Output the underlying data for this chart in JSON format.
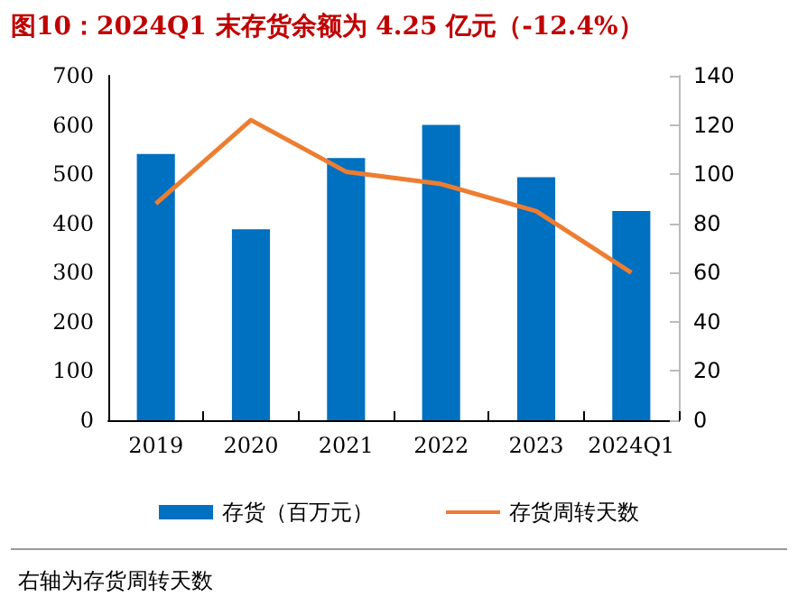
{
  "chart_data": {
    "type": "bar",
    "title": "图10：2024Q1 末存货余额为 4.25 亿元（-12.4%）",
    "categories": [
      "2019",
      "2020",
      "2021",
      "2022",
      "2023",
      "2024Q1"
    ],
    "series": [
      {
        "name": "存货（百万元）",
        "color": "#0070c0",
        "values": [
          541,
          388,
          533,
          600,
          494,
          425
        ]
      },
      {
        "name": "存货周转天数",
        "type": "line",
        "axis": "y2",
        "color": "#ed7d31",
        "values": [
          88,
          122,
          101,
          96,
          85,
          60
        ]
      }
    ],
    "ylim": [
      0,
      700
    ],
    "yticks": [
      0,
      100,
      200,
      300,
      400,
      500,
      600,
      700
    ],
    "y2lim": [
      0,
      140
    ],
    "y2ticks": [
      0,
      20,
      40,
      60,
      80,
      100,
      120,
      140
    ],
    "grid": false,
    "legend": "bottom",
    "marker": "none",
    "annotations": [
      "右轴为存货周转天数"
    ]
  }
}
